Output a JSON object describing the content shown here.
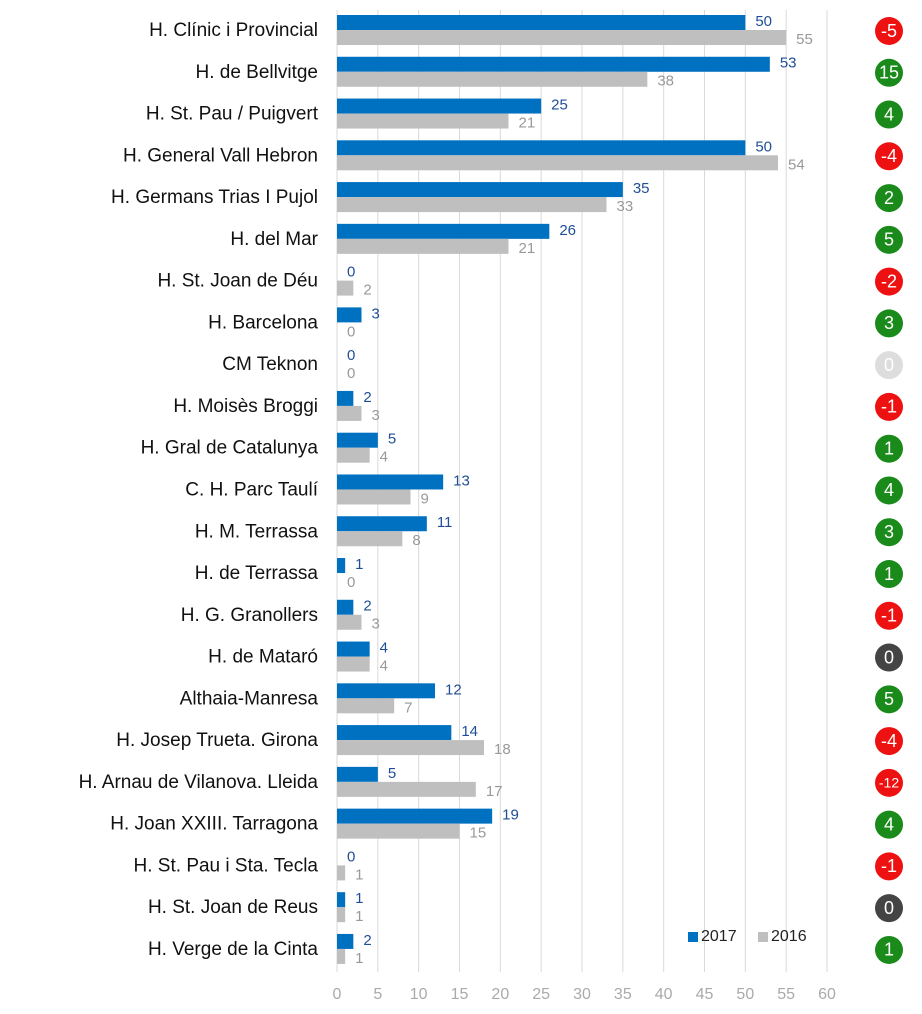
{
  "chart_data": {
    "type": "grouped-barh",
    "categories": [
      "H. Clínic i Provincial",
      "H. de Bellvitge",
      "H.  St. Pau / Puigvert",
      "H. General Vall Hebron",
      "H. Germans Trias I Pujol",
      "H. del Mar",
      "H. St. Joan de Déu",
      "H. Barcelona",
      "CM Teknon",
      "H. Moisès Broggi",
      "H. Gral de Catalunya",
      "C. H. Parc Taulí",
      "H. M. Terrassa",
      "H. de Terrassa",
      "H. G. Granollers",
      "H. de Mataró",
      "Althaia-Manresa",
      "H. Josep Trueta. Girona",
      "H. Arnau de Vilanova. Lleida",
      "H. Joan XXIII. Tarragona",
      "H. St. Pau i Sta. Tecla",
      "H. St. Joan de Reus",
      "H. Verge de la Cinta"
    ],
    "series": [
      {
        "name": "2017",
        "color": "#0070c0",
        "label_color": "#1f4e96",
        "values": [
          50,
          53,
          25,
          50,
          35,
          26,
          0,
          3,
          0,
          2,
          5,
          13,
          11,
          1,
          2,
          4,
          12,
          14,
          5,
          19,
          0,
          1,
          2
        ]
      },
      {
        "name": "2016",
        "color": "#bfbfbf",
        "label_color": "#999999",
        "values": [
          55,
          38,
          21,
          54,
          33,
          21,
          2,
          0,
          0,
          3,
          4,
          9,
          8,
          0,
          3,
          4,
          7,
          18,
          17,
          15,
          1,
          1,
          1
        ]
      }
    ],
    "differences": [
      -5,
      15,
      4,
      -4,
      2,
      5,
      -2,
      3,
      0,
      -1,
      1,
      4,
      3,
      1,
      -1,
      0,
      5,
      -4,
      -12,
      4,
      -1,
      0,
      1
    ],
    "difference_colors": [
      "#ee1111",
      "#1a8a1a",
      "#1a8a1a",
      "#ee1111",
      "#1a8a1a",
      "#1a8a1a",
      "#ee1111",
      "#1a8a1a",
      "#dddddd",
      "#ee1111",
      "#1a8a1a",
      "#1a8a1a",
      "#1a8a1a",
      "#1a8a1a",
      "#ee1111",
      "#444444",
      "#1a8a1a",
      "#ee1111",
      "#ee1111",
      "#1a8a1a",
      "#ee1111",
      "#444444",
      "#1a8a1a"
    ],
    "xlim": [
      0,
      60
    ],
    "xticks": [
      0,
      5,
      10,
      15,
      20,
      25,
      30,
      35,
      40,
      45,
      50,
      55,
      60
    ],
    "grid": true,
    "legend": "bottom-right"
  }
}
